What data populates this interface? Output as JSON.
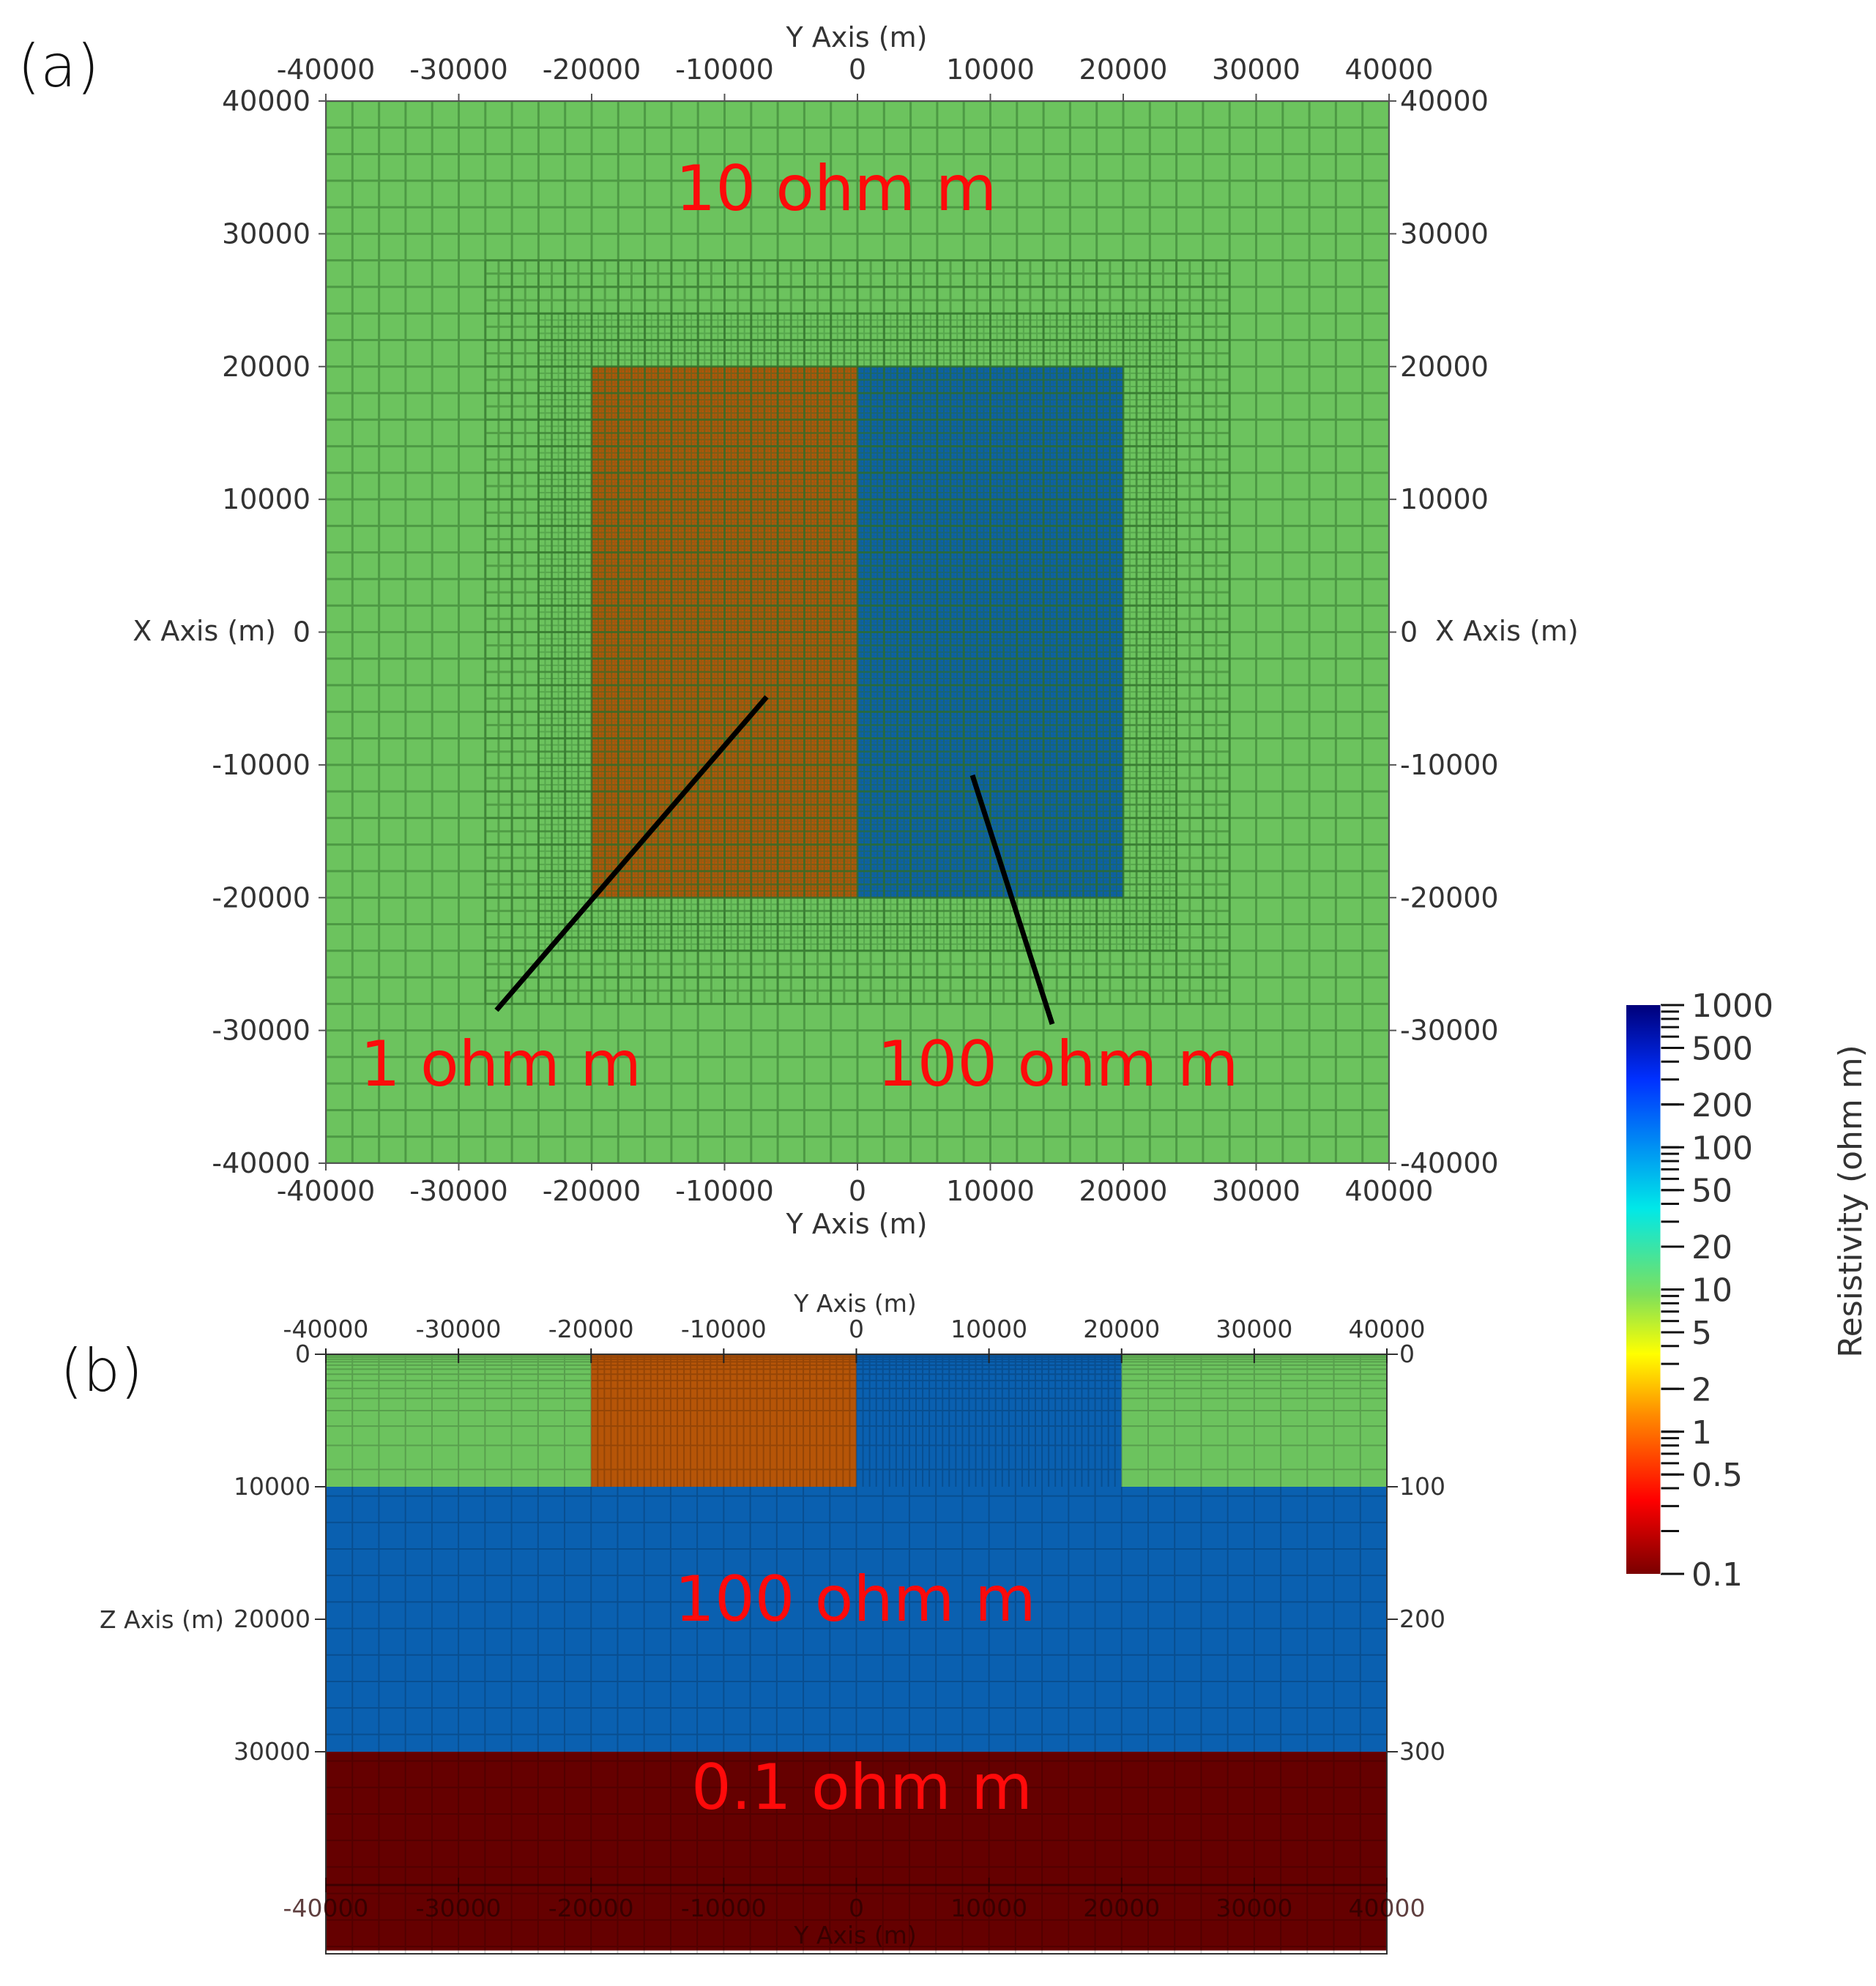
{
  "colors": {
    "resistivity_1": "#b65508",
    "resistivity_10": "#6cc35e",
    "resistivity_100": "#0a60b0",
    "resistivity_0_1": "#650000",
    "mesh_line": "#4c9a44",
    "annotation": "#ff0a0a"
  },
  "chart_data": [
    {
      "type": "heatmap",
      "panel_label": "(a)",
      "xlabel": "Y Axis (m)",
      "ylabel": "X Axis (m)",
      "xlim": [
        -40000,
        40000
      ],
      "ylim": [
        -40000,
        40000
      ],
      "x_ticks": [
        "-40000",
        "-30000",
        "-20000",
        "-10000",
        "0",
        "10000",
        "20000",
        "30000",
        "40000"
      ],
      "y_ticks": [
        "40000",
        "30000",
        "20000",
        "10000",
        "0",
        "-10000",
        "-20000",
        "-30000",
        "-40000"
      ],
      "background_resistivity": 10,
      "blocks": [
        {
          "y_range": [
            -20000,
            0
          ],
          "x_range": [
            -20000,
            20000
          ],
          "resistivity": 1
        },
        {
          "y_range": [
            0,
            20000
          ],
          "x_range": [
            -20000,
            20000
          ],
          "resistivity": 100
        }
      ],
      "annotations": [
        "10 ohm m",
        "1 ohm m",
        "100 ohm m"
      ]
    },
    {
      "type": "heatmap",
      "panel_label": "(b)",
      "xlabel": "Y Axis (m)",
      "ylabel": "Z Axis (m)",
      "xlim": [
        -40000,
        40000
      ],
      "x_ticks": [
        "-40000",
        "-30000",
        "-20000",
        "-10000",
        "0",
        "10000",
        "20000",
        "30000",
        "40000"
      ],
      "z_ticks": [
        "0",
        "10000",
        "20000",
        "30000"
      ],
      "z_ticks_right": [
        "0",
        "100",
        "200",
        "300"
      ],
      "layers": [
        {
          "y_range": [
            -40000,
            -20000
          ],
          "z_range": [
            0,
            10000
          ],
          "resistivity": 10
        },
        {
          "y_range": [
            -20000,
            0
          ],
          "z_range": [
            0,
            10000
          ],
          "resistivity": 1
        },
        {
          "y_range": [
            0,
            20000
          ],
          "z_range": [
            0,
            10000
          ],
          "resistivity": 100
        },
        {
          "y_range": [
            20000,
            40000
          ],
          "z_range": [
            0,
            10000
          ],
          "resistivity": 10
        },
        {
          "y_range": [
            -40000,
            40000
          ],
          "z_range": [
            10000,
            30000
          ],
          "resistivity": 100
        },
        {
          "y_range": [
            -40000,
            40000
          ],
          "z_range": [
            30000,
            45000
          ],
          "resistivity": 0.1
        }
      ],
      "annotations": [
        "100 ohm m",
        "0.1 ohm m"
      ],
      "bottom_axis_label": "Y Axis (m)"
    }
  ],
  "colorbar": {
    "title": "Resistivity (ohm m)",
    "scale": "log",
    "range": [
      0.1,
      1000
    ],
    "tick_labels": [
      "1000",
      "500",
      "200",
      "100",
      "50",
      "20",
      "10",
      "5",
      "2",
      "1",
      "0.5",
      "0.1"
    ],
    "tick_values": [
      1000,
      500,
      200,
      100,
      50,
      20,
      10,
      5,
      2,
      1,
      0.5,
      0.1
    ]
  }
}
